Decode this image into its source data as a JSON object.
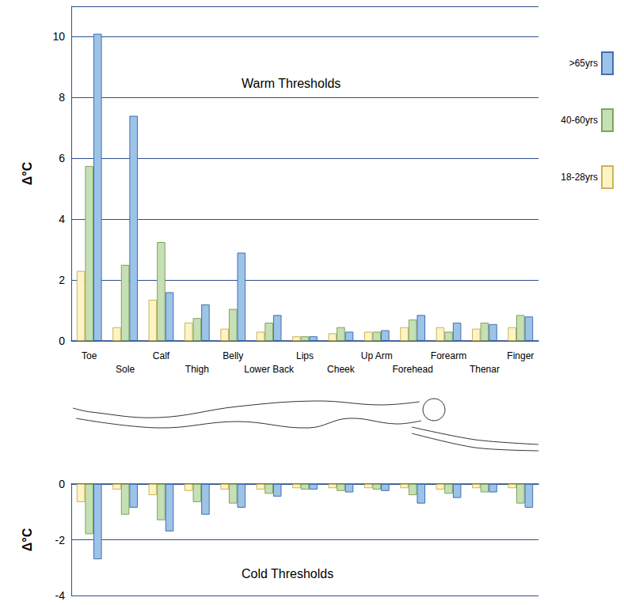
{
  "chart_data": [
    {
      "type": "bar",
      "title": "Warm Thresholds",
      "y_label": "Δ°C",
      "categories": [
        "Toe",
        "Sole",
        "Calf",
        "Thigh",
        "Belly",
        "Lower Back",
        "Lips",
        "Cheek",
        "Up Arm",
        "Forehead",
        "Forearm",
        "Thenar",
        "Finger"
      ],
      "series": [
        {
          "name": "18-28yrs",
          "color": "#fdf3c4",
          "values": [
            2.3,
            0.45,
            1.35,
            0.6,
            0.4,
            0.3,
            0.15,
            0.25,
            0.3,
            0.45,
            0.45,
            0.4,
            0.45
          ]
        },
        {
          "name": "40-60yrs",
          "color": "#c5e0b4",
          "values": [
            5.75,
            2.5,
            3.25,
            0.75,
            1.05,
            0.6,
            0.15,
            0.45,
            0.3,
            0.7,
            0.3,
            0.6,
            0.85
          ]
        },
        {
          "name": ">65yrs",
          "color": "#9dc3e6",
          "values": [
            10.1,
            7.4,
            1.6,
            1.2,
            2.9,
            0.85,
            0.15,
            0.3,
            0.35,
            0.85,
            0.6,
            0.55,
            0.8
          ]
        }
      ],
      "ylim": [
        0,
        11
      ],
      "yticks": [
        0,
        2,
        4,
        6,
        8,
        10
      ],
      "grid": true,
      "legend": "right"
    },
    {
      "type": "bar",
      "title": "Cold Thresholds",
      "y_label": "Δ°C",
      "categories": [
        "Toe",
        "Sole",
        "Calf",
        "Thigh",
        "Belly",
        "Lower Back",
        "Lips",
        "Cheek",
        "Up Arm",
        "Forehead",
        "Forearm",
        "Thenar",
        "Finger"
      ],
      "series": [
        {
          "name": "18-28yrs",
          "color": "#fdf3c4",
          "values": [
            -0.65,
            -0.2,
            -0.4,
            -0.25,
            -0.2,
            -0.2,
            -0.15,
            -0.15,
            -0.15,
            -0.15,
            -0.2,
            -0.15,
            -0.15
          ]
        },
        {
          "name": "40-60yrs",
          "color": "#c5e0b4",
          "values": [
            -1.8,
            -1.1,
            -1.3,
            -0.65,
            -0.7,
            -0.35,
            -0.2,
            -0.25,
            -0.2,
            -0.4,
            -0.35,
            -0.3,
            -0.7
          ]
        },
        {
          "name": ">65yrs",
          "color": "#9dc3e6",
          "values": [
            -2.7,
            -0.85,
            -1.7,
            -1.1,
            -0.85,
            -0.45,
            -0.2,
            -0.3,
            -0.25,
            -0.7,
            -0.5,
            -0.3,
            -0.85
          ]
        }
      ],
      "ylim": [
        -4,
        0
      ],
      "yticks": [
        -4,
        -2,
        0
      ],
      "grid": true,
      "tick_labels": "y"
    }
  ]
}
